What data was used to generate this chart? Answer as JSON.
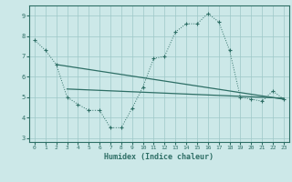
{
  "line1_x": [
    0,
    1,
    2,
    3,
    4,
    5,
    6,
    7,
    8,
    9,
    10,
    11,
    12,
    13,
    14,
    15,
    16,
    17,
    18,
    19,
    20,
    21,
    22,
    23
  ],
  "line1_y": [
    7.8,
    7.3,
    6.6,
    5.0,
    4.65,
    4.35,
    4.35,
    3.5,
    3.5,
    4.45,
    5.5,
    6.9,
    7.0,
    8.2,
    8.6,
    8.6,
    9.1,
    8.7,
    7.3,
    5.0,
    4.9,
    4.8,
    5.3,
    4.9
  ],
  "line2_x": [
    3,
    23
  ],
  "line2_y": [
    5.4,
    4.95
  ],
  "line3_x": [
    2,
    23
  ],
  "line3_y": [
    6.6,
    4.9
  ],
  "color": "#2d6e65",
  "bg_color": "#cce8e8",
  "grid_color": "#9ec8c8",
  "xlabel": "Humidex (Indice chaleur)",
  "xlim": [
    -0.5,
    23.5
  ],
  "ylim": [
    2.8,
    9.5
  ],
  "yticks": [
    3,
    4,
    5,
    6,
    7,
    8,
    9
  ],
  "xticks": [
    0,
    1,
    2,
    3,
    4,
    5,
    6,
    7,
    8,
    9,
    10,
    11,
    12,
    13,
    14,
    15,
    16,
    17,
    18,
    19,
    20,
    21,
    22,
    23
  ]
}
